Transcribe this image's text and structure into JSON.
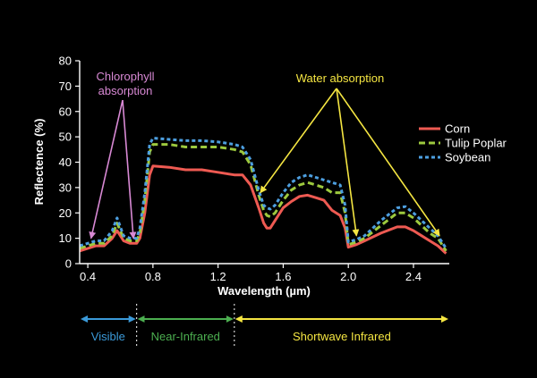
{
  "chart_data": {
    "type": "line",
    "title": "",
    "xlabel": "Wavelength (µm)",
    "ylabel": "Reflectence (%)",
    "xlim": [
      0.35,
      2.62
    ],
    "ylim": [
      0,
      80
    ],
    "x_ticks": [
      "0.4",
      "0.8",
      "1.2",
      "1.6",
      "2.0",
      "2.4"
    ],
    "x_tick_values": [
      0.4,
      0.8,
      1.2,
      1.6,
      2.0,
      2.4
    ],
    "y_ticks": [
      "0",
      "10",
      "20",
      "30",
      "40",
      "50",
      "60",
      "70",
      "80"
    ],
    "y_tick_values": [
      0,
      10,
      20,
      30,
      40,
      50,
      60,
      70,
      80
    ],
    "grid": false,
    "legend_position": "right",
    "series": [
      {
        "name": "Corn",
        "color": "#ee5a52",
        "dash": "solid",
        "x": [
          0.35,
          0.4,
          0.45,
          0.5,
          0.55,
          0.58,
          0.62,
          0.66,
          0.7,
          0.72,
          0.75,
          0.78,
          0.8,
          0.9,
          1.0,
          1.1,
          1.2,
          1.3,
          1.35,
          1.4,
          1.45,
          1.48,
          1.5,
          1.52,
          1.55,
          1.6,
          1.65,
          1.7,
          1.75,
          1.8,
          1.85,
          1.9,
          1.95,
          1.98,
          2.0,
          2.05,
          2.1,
          2.2,
          2.3,
          2.35,
          2.4,
          2.45,
          2.5,
          2.55,
          2.6
        ],
        "y": [
          5,
          6,
          7,
          7,
          10,
          13,
          9,
          8,
          8,
          10,
          20,
          35,
          38.5,
          38,
          37,
          37,
          36,
          35,
          35,
          31,
          22,
          16,
          14,
          14,
          17,
          22,
          24.5,
          26.5,
          27,
          26,
          25,
          21,
          19,
          14,
          6.5,
          7.5,
          9,
          12,
          14.5,
          14.5,
          13,
          11,
          9,
          7,
          4
        ]
      },
      {
        "name": "Tulip Poplar",
        "color": "#9dc93e",
        "dash": "long",
        "x": [
          0.35,
          0.4,
          0.45,
          0.5,
          0.55,
          0.58,
          0.62,
          0.66,
          0.7,
          0.72,
          0.75,
          0.78,
          0.8,
          0.9,
          1.0,
          1.1,
          1.2,
          1.3,
          1.35,
          1.4,
          1.45,
          1.48,
          1.5,
          1.52,
          1.55,
          1.6,
          1.65,
          1.7,
          1.75,
          1.8,
          1.85,
          1.9,
          1.95,
          1.98,
          2.0,
          2.05,
          2.1,
          2.2,
          2.3,
          2.35,
          2.4,
          2.45,
          2.5,
          2.55,
          2.6
        ],
        "y": [
          6,
          7,
          8,
          8,
          11,
          16,
          10,
          9,
          9,
          12,
          25,
          44,
          47,
          47,
          46,
          46,
          46,
          45,
          44,
          39,
          27,
          21,
          19,
          18.5,
          20,
          25,
          29,
          31,
          32,
          31,
          30,
          28,
          28,
          20,
          7.5,
          8.5,
          10,
          15,
          20,
          20,
          18,
          15,
          12,
          10,
          5
        ]
      },
      {
        "name": "Soybean",
        "color": "#4d9fe0",
        "dash": "short",
        "x": [
          0.35,
          0.4,
          0.45,
          0.5,
          0.55,
          0.58,
          0.62,
          0.66,
          0.7,
          0.72,
          0.75,
          0.78,
          0.8,
          0.9,
          1.0,
          1.1,
          1.2,
          1.3,
          1.35,
          1.4,
          1.45,
          1.48,
          1.5,
          1.52,
          1.55,
          1.6,
          1.65,
          1.7,
          1.75,
          1.8,
          1.85,
          1.9,
          1.95,
          1.98,
          2.0,
          2.05,
          2.1,
          2.2,
          2.3,
          2.35,
          2.4,
          2.45,
          2.5,
          2.55,
          2.6
        ],
        "y": [
          7,
          8,
          9,
          9,
          13,
          18,
          11,
          10,
          10,
          14,
          28,
          47,
          49.5,
          49,
          48.5,
          48.5,
          48,
          47,
          46,
          41,
          29,
          23,
          22,
          21.5,
          23,
          28,
          32,
          34,
          35,
          34,
          33,
          32,
          31,
          23,
          8.5,
          9.5,
          11,
          17,
          22,
          22.5,
          20,
          17,
          14,
          11,
          6
        ]
      }
    ],
    "annotations": {
      "chlorophyll": {
        "lines": [
          "Chlorophyll",
          "absorption"
        ],
        "color": "#d889d4",
        "targets": [
          [
            0.42,
            10
          ],
          [
            0.68,
            10
          ]
        ]
      },
      "water": {
        "label": "Water absorption",
        "color": "#f5e642",
        "targets": [
          [
            1.46,
            28
          ],
          [
            2.05,
            11
          ],
          [
            2.56,
            11
          ]
        ]
      }
    },
    "regions": [
      {
        "label": "Visible",
        "color": "#3b9ad9",
        "range": [
          0.35,
          0.7
        ]
      },
      {
        "label": "Near-Infrared",
        "color": "#4caf50",
        "range": [
          0.7,
          1.3
        ]
      },
      {
        "label": "Shortwave Infrared",
        "color": "#f5e642",
        "range": [
          1.3,
          2.62
        ]
      }
    ]
  }
}
